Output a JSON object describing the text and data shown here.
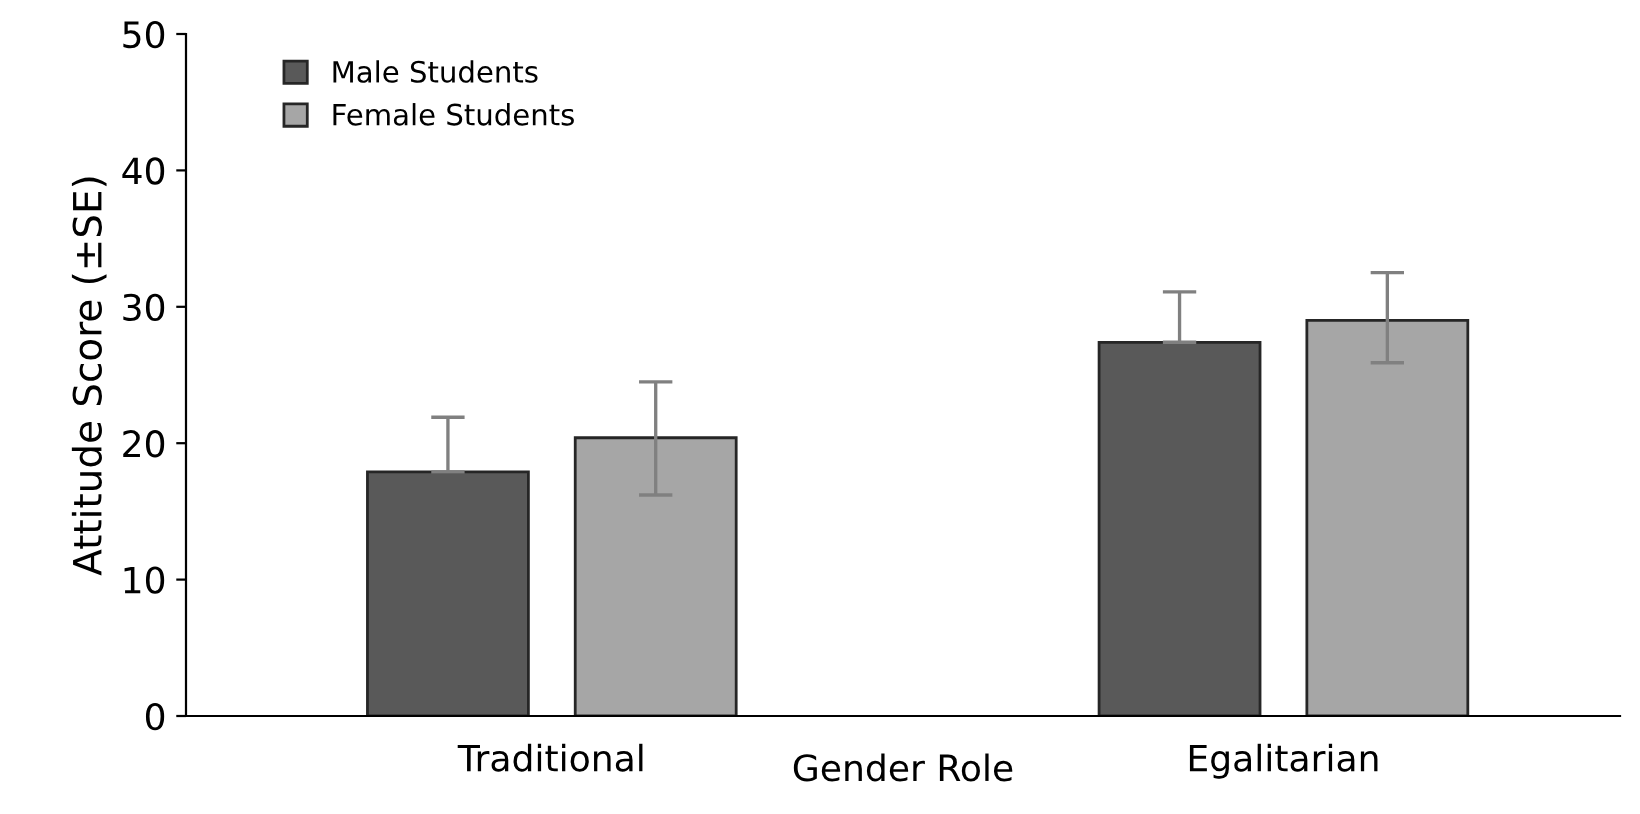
{
  "chart_data": {
    "type": "bar",
    "xlabel": "Gender Role",
    "ylabel": "Attitude Score (±SE)",
    "categories": [
      "Traditional",
      "Egalitarian"
    ],
    "series": [
      {
        "name": "Male Students",
        "color": "#595959",
        "values": [
          17.9,
          27.4
        ],
        "errors": [
          [
            17.9,
            21.9
          ],
          [
            27.4,
            31.1
          ]
        ]
      },
      {
        "name": "Female Students",
        "color": "#a6a6a6",
        "values": [
          20.4,
          29.0
        ],
        "errors": [
          [
            16.2,
            24.5
          ],
          [
            25.9,
            32.5
          ]
        ]
      }
    ],
    "ylim": [
      0,
      50
    ],
    "yticks": [
      0,
      10,
      20,
      30,
      40,
      50
    ],
    "grid": false,
    "legend": "top left"
  }
}
